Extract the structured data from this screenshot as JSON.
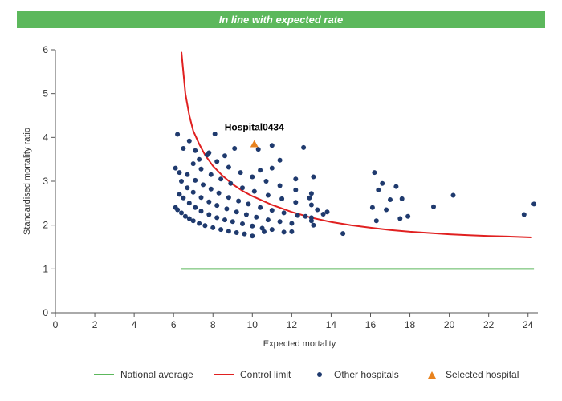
{
  "header": {
    "status_text": "In line with expected rate"
  },
  "colors": {
    "banner": "#5cb85c",
    "national_average": "#5cb85c",
    "control_limit": "#e02020",
    "other_hospitals": "#1f3a6e",
    "selected_hospital": "#e8821e"
  },
  "chart_data": {
    "type": "scatter",
    "xlabel": "Expected mortality",
    "ylabel": "Standardised mortality ratio",
    "xlim": [
      0,
      24.5
    ],
    "ylim": [
      0,
      6
    ],
    "xticks": [
      "0",
      "2",
      "4",
      "6",
      "8",
      "10",
      "12",
      "14",
      "16",
      "18",
      "20",
      "22",
      "24"
    ],
    "yticks": [
      "0",
      "1",
      "2",
      "3",
      "4",
      "5",
      "6"
    ],
    "grid": false,
    "legend_position": "bottom",
    "legend": [
      "National average",
      "Control limit",
      "Other hospitals",
      "Selected hospital"
    ],
    "national_average": {
      "name": "National average",
      "y": 1,
      "x_range": [
        6.4,
        24.3
      ]
    },
    "control_limit": {
      "name": "Control limit",
      "points": [
        [
          6.4,
          5.95
        ],
        [
          6.6,
          5.0
        ],
        [
          6.8,
          4.5
        ],
        [
          7.0,
          4.15
        ],
        [
          7.3,
          3.85
        ],
        [
          7.6,
          3.6
        ],
        [
          8.0,
          3.35
        ],
        [
          8.5,
          3.12
        ],
        [
          9.0,
          2.93
        ],
        [
          9.5,
          2.78
        ],
        [
          10.0,
          2.66
        ],
        [
          11.0,
          2.46
        ],
        [
          12.0,
          2.3
        ],
        [
          13.0,
          2.17
        ],
        [
          14.0,
          2.07
        ],
        [
          15.0,
          2.0
        ],
        [
          16.0,
          1.94
        ],
        [
          17.0,
          1.89
        ],
        [
          18.0,
          1.85
        ],
        [
          19.0,
          1.82
        ],
        [
          20.0,
          1.79
        ],
        [
          21.0,
          1.77
        ],
        [
          22.0,
          1.75
        ],
        [
          23.0,
          1.74
        ],
        [
          24.2,
          1.72
        ]
      ]
    },
    "other_hospitals": {
      "name": "Other hospitals",
      "points": [
        [
          6.1,
          2.4
        ],
        [
          6.2,
          2.35
        ],
        [
          6.4,
          2.28
        ],
        [
          6.6,
          2.2
        ],
        [
          6.8,
          2.15
        ],
        [
          7.0,
          2.1
        ],
        [
          7.3,
          2.04
        ],
        [
          7.6,
          1.99
        ],
        [
          8.0,
          1.94
        ],
        [
          8.4,
          1.9
        ],
        [
          8.8,
          1.86
        ],
        [
          9.2,
          1.83
        ],
        [
          9.6,
          1.8
        ],
        [
          10.0,
          1.75
        ],
        [
          6.3,
          2.7
        ],
        [
          6.5,
          2.62
        ],
        [
          6.8,
          2.5
        ],
        [
          7.1,
          2.4
        ],
        [
          7.4,
          2.32
        ],
        [
          7.8,
          2.24
        ],
        [
          8.2,
          2.17
        ],
        [
          8.6,
          2.12
        ],
        [
          9.0,
          2.08
        ],
        [
          9.5,
          2.03
        ],
        [
          10.0,
          1.98
        ],
        [
          10.5,
          1.93
        ],
        [
          11.0,
          1.9
        ],
        [
          6.4,
          3.0
        ],
        [
          6.7,
          2.85
        ],
        [
          7.0,
          2.75
        ],
        [
          7.4,
          2.63
        ],
        [
          7.8,
          2.53
        ],
        [
          8.2,
          2.45
        ],
        [
          8.7,
          2.37
        ],
        [
          9.2,
          2.3
        ],
        [
          9.7,
          2.24
        ],
        [
          10.2,
          2.18
        ],
        [
          10.8,
          2.12
        ],
        [
          11.4,
          2.08
        ],
        [
          12.0,
          2.04
        ],
        [
          6.1,
          3.3
        ],
        [
          6.3,
          3.2
        ],
        [
          6.7,
          3.15
        ],
        [
          7.1,
          3.02
        ],
        [
          7.5,
          2.92
        ],
        [
          7.9,
          2.82
        ],
        [
          8.3,
          2.73
        ],
        [
          8.8,
          2.63
        ],
        [
          9.3,
          2.55
        ],
        [
          9.8,
          2.48
        ],
        [
          10.4,
          2.4
        ],
        [
          11.0,
          2.34
        ],
        [
          11.6,
          2.28
        ],
        [
          12.3,
          2.22
        ],
        [
          13.0,
          2.17
        ],
        [
          7.0,
          3.4
        ],
        [
          7.4,
          3.28
        ],
        [
          7.9,
          3.15
        ],
        [
          8.4,
          3.05
        ],
        [
          8.9,
          2.95
        ],
        [
          9.5,
          2.85
        ],
        [
          10.1,
          2.77
        ],
        [
          10.8,
          2.68
        ],
        [
          11.5,
          2.6
        ],
        [
          12.2,
          2.52
        ],
        [
          13.0,
          2.46
        ],
        [
          7.7,
          3.6
        ],
        [
          8.2,
          3.45
        ],
        [
          8.8,
          3.32
        ],
        [
          9.4,
          3.2
        ],
        [
          10.0,
          3.1
        ],
        [
          10.7,
          3.0
        ],
        [
          11.4,
          2.9
        ],
        [
          12.2,
          2.8
        ],
        [
          13.0,
          2.72
        ],
        [
          6.2,
          4.07
        ],
        [
          6.5,
          3.75
        ],
        [
          6.8,
          3.92
        ],
        [
          7.1,
          3.7
        ],
        [
          7.3,
          3.5
        ],
        [
          7.8,
          3.65
        ],
        [
          8.1,
          4.08
        ],
        [
          8.6,
          3.58
        ],
        [
          9.1,
          3.75
        ],
        [
          10.3,
          3.73
        ],
        [
          11.0,
          3.82
        ],
        [
          12.6,
          3.77
        ],
        [
          12.2,
          3.05
        ],
        [
          13.1,
          3.1
        ],
        [
          11.4,
          3.48
        ],
        [
          10.4,
          3.25
        ],
        [
          11.0,
          3.3
        ],
        [
          12.9,
          2.62
        ],
        [
          12.7,
          2.2
        ],
        [
          13.0,
          2.1
        ],
        [
          13.3,
          2.35
        ],
        [
          13.6,
          2.25
        ],
        [
          13.8,
          2.3
        ],
        [
          13.1,
          2.0
        ],
        [
          11.6,
          1.84
        ],
        [
          12.0,
          1.85
        ],
        [
          10.6,
          1.85
        ],
        [
          14.6,
          1.81
        ],
        [
          16.1,
          2.4
        ],
        [
          16.2,
          3.2
        ],
        [
          16.4,
          2.8
        ],
        [
          16.3,
          2.1
        ],
        [
          16.6,
          2.95
        ],
        [
          16.8,
          2.35
        ],
        [
          17.0,
          2.58
        ],
        [
          17.3,
          2.88
        ],
        [
          17.5,
          2.15
        ],
        [
          17.6,
          2.6
        ],
        [
          17.9,
          2.2
        ],
        [
          19.2,
          2.42
        ],
        [
          20.2,
          2.68
        ],
        [
          23.8,
          2.24
        ],
        [
          24.3,
          2.48
        ]
      ]
    },
    "selected_hospital": {
      "name": "Selected hospital",
      "label": "Hospital0434",
      "x": 10.1,
      "y": 3.85
    }
  }
}
